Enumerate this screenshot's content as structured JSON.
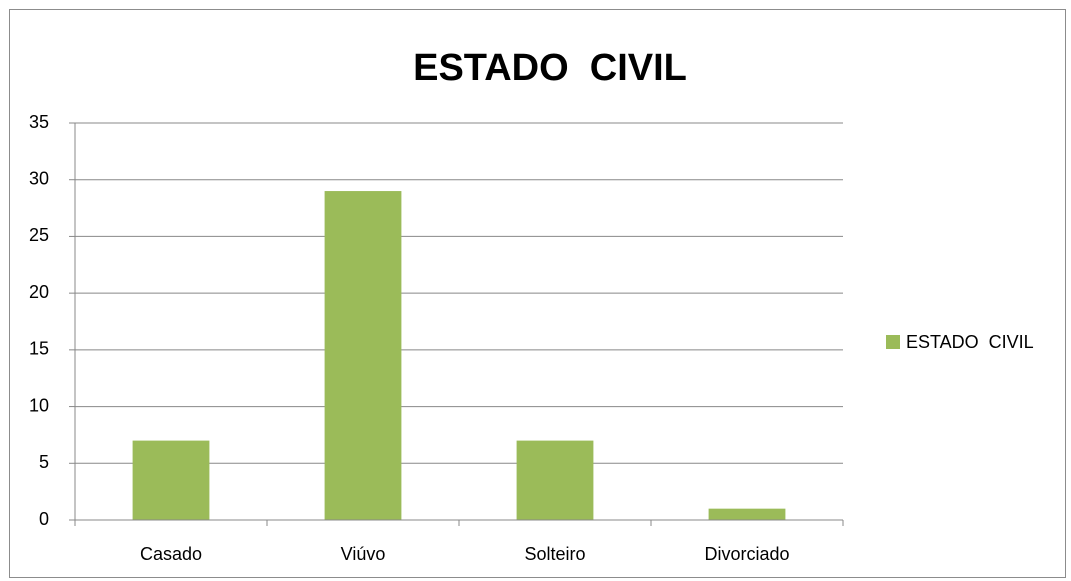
{
  "chart_data": {
    "type": "bar",
    "title": "ESTADO  CIVIL",
    "categories": [
      "Casado",
      "Viúvo",
      "Solteiro",
      "Divorciado"
    ],
    "series": [
      {
        "name": "ESTADO  CIVIL",
        "color": "#9bbb59",
        "values": [
          7,
          29,
          7,
          1
        ]
      }
    ],
    "ylim": [
      0,
      35
    ],
    "yticks": [
      0,
      5,
      10,
      15,
      20,
      25,
      30,
      35
    ],
    "grid": true,
    "legend": "right"
  }
}
